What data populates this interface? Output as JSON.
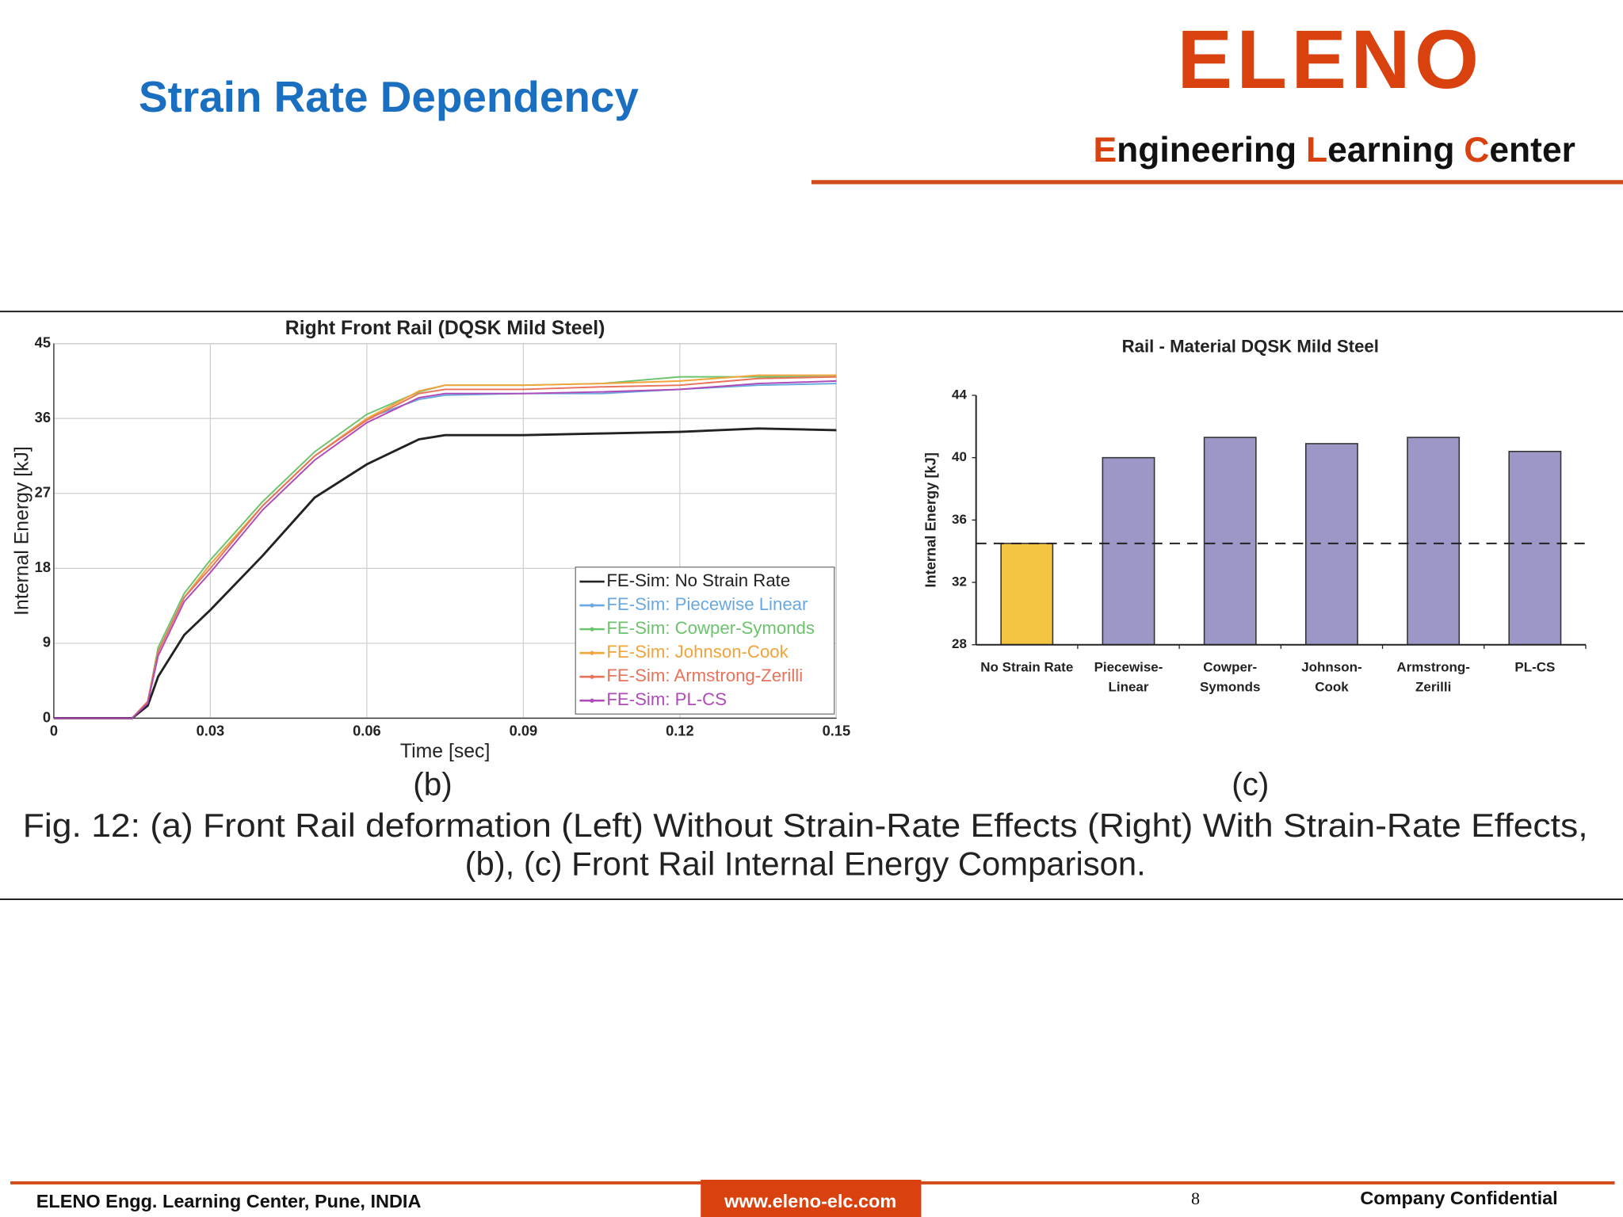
{
  "header": {
    "title": "Strain Rate Dependency",
    "logo": "ELENO",
    "tagline": [
      "Engineering",
      "Learning",
      "Center"
    ]
  },
  "chart_data": [
    {
      "type": "line",
      "title": "Right Front Rail (DQSK Mild Steel)",
      "x_label": "Time [sec]",
      "y_label": "Internal Energy [kJ]",
      "x": [
        0,
        0.015,
        0.018,
        0.02,
        0.025,
        0.03,
        0.04,
        0.05,
        0.06,
        0.07,
        0.075,
        0.09,
        0.105,
        0.12,
        0.135,
        0.15
      ],
      "series": [
        {
          "name": "FE-Sim: No Strain Rate",
          "color": "#222222",
          "values": [
            0,
            0,
            1.5,
            5,
            10,
            13,
            19.5,
            26.5,
            30.5,
            33.5,
            34,
            34,
            34.2,
            34.4,
            34.8,
            34.6
          ]
        },
        {
          "name": "FE-Sim: Piecewise Linear",
          "color": "#6aa8e0",
          "values": [
            0,
            0,
            2,
            8,
            14.5,
            18.5,
            25.5,
            31.5,
            36,
            38.3,
            38.8,
            39,
            39,
            39.5,
            40,
            40.2
          ]
        },
        {
          "name": "FE-Sim: Cowper-Symonds",
          "color": "#6cc36c",
          "values": [
            0,
            0,
            2,
            8.5,
            15,
            19,
            26,
            32,
            36.5,
            39.2,
            40,
            40,
            40.2,
            41,
            41,
            41
          ]
        },
        {
          "name": "FE-Sim: Johnson-Cook",
          "color": "#f2a33a",
          "values": [
            0,
            0,
            2,
            8,
            14.5,
            18.5,
            25.5,
            31.5,
            36,
            39.3,
            40,
            40,
            40.2,
            40.5,
            41.2,
            41.2
          ]
        },
        {
          "name": "FE-Sim: Armstrong-Zerilli",
          "color": "#e8735a",
          "values": [
            0,
            0,
            2,
            8,
            14.5,
            18,
            25.5,
            31.5,
            35.8,
            39,
            39.5,
            39.5,
            39.8,
            40,
            40.8,
            41
          ]
        },
        {
          "name": "FE-Sim: PL-CS",
          "color": "#b04ab8",
          "values": [
            0,
            0,
            1.8,
            7.5,
            14,
            17.5,
            25,
            31,
            35.5,
            38.5,
            39,
            39,
            39.2,
            39.5,
            40.2,
            40.5
          ]
        }
      ],
      "xlim": [
        0,
        0.15
      ],
      "xticks": [
        0,
        0.03,
        0.06,
        0.09,
        0.12,
        0.15
      ],
      "ylim": [
        0,
        45
      ],
      "yticks": [
        0,
        9,
        18,
        27,
        36,
        45
      ],
      "grid": true,
      "legend": "lower right"
    },
    {
      "type": "bar",
      "title": "Rail - Material DQSK Mild Steel",
      "y_label": "Internal Energy [kJ]",
      "categories": [
        "No Strain Rate",
        "Piecewise-Linear",
        "Cowper-Symonds",
        "Johnson-Cook",
        "Armstrong-Zerilli",
        "PL-CS"
      ],
      "values": [
        34.5,
        40,
        41.3,
        40.9,
        41.3,
        40.4
      ],
      "colors": [
        "#f5c342",
        "#9b98c8",
        "#9b98c8",
        "#9b98c8",
        "#9b98c8",
        "#9b98c8"
      ],
      "ylim": [
        28,
        44
      ],
      "yticks": [
        28,
        32,
        36,
        40,
        44
      ],
      "grid": false
    }
  ],
  "panel_labels": [
    "(b)",
    "(c)"
  ],
  "caption": [
    "Fig. 12: (a) Front Rail deformation (Left) Without Strain-Rate Effects (Right) With Strain-Rate Effects,",
    "(b), (c) Front Rail Internal Energy Comparison."
  ],
  "footer": {
    "left": "ELENO Engg. Learning Center, Pune, INDIA",
    "url": "www.eleno-elc.com",
    "page": 8,
    "right": "Company Confidential"
  }
}
